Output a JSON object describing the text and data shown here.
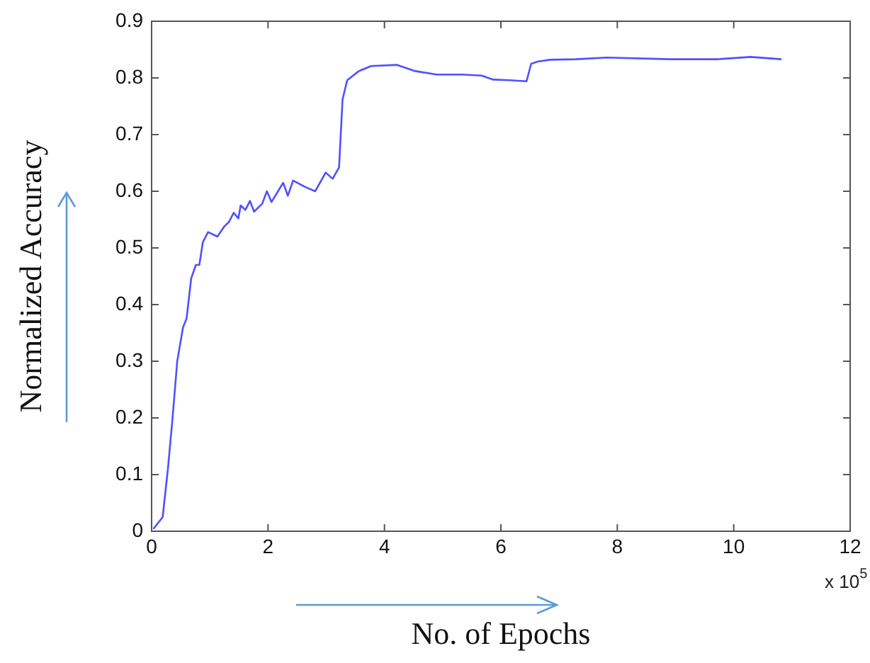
{
  "chart_data": {
    "type": "line",
    "xlabel": "No. of Epochs",
    "ylabel": "Normalized Accuracy",
    "annotations": [
      "x 10$^{5}$"
    ],
    "xlim": [
      0,
      12
    ],
    "xticks": [
      0,
      2,
      4,
      6,
      8,
      10,
      12
    ],
    "ylim": [
      0,
      0.9
    ],
    "yticks": [
      0,
      0.1,
      0.2,
      0.3,
      0.4,
      0.5,
      0.6,
      0.7,
      0.8,
      0.9
    ],
    "grid": false,
    "legend": false,
    "marker": "none",
    "line_style": "solid",
    "series": [
      {
        "color": "#5050ff",
        "x": [
          0.03,
          0.19,
          0.28,
          0.36,
          0.44,
          0.54,
          0.6,
          0.68,
          0.76,
          0.82,
          0.88,
          0.97,
          1.13,
          1.25,
          1.33,
          1.41,
          1.49,
          1.53,
          1.61,
          1.69,
          1.76,
          1.9,
          1.98,
          2.06,
          2.26,
          2.34,
          2.43,
          2.63,
          2.81,
          2.99,
          3.11,
          3.22,
          3.28,
          3.36,
          3.56,
          3.77,
          4.21,
          4.53,
          4.9,
          5.34,
          5.67,
          5.87,
          6.15,
          6.44,
          6.52,
          6.64,
          6.84,
          7.29,
          7.82,
          8.91,
          9.72,
          10.29,
          10.82
        ],
        "values": [
          0.004,
          0.025,
          0.11,
          0.2,
          0.3,
          0.36,
          0.375,
          0.446,
          0.47,
          0.47,
          0.51,
          0.528,
          0.52,
          0.538,
          0.546,
          0.562,
          0.552,
          0.575,
          0.567,
          0.583,
          0.564,
          0.578,
          0.6,
          0.581,
          0.615,
          0.592,
          0.619,
          0.608,
          0.6,
          0.633,
          0.622,
          0.642,
          0.762,
          0.796,
          0.812,
          0.821,
          0.823,
          0.812,
          0.806,
          0.806,
          0.804,
          0.797,
          0.796,
          0.794,
          0.825,
          0.829,
          0.832,
          0.833,
          0.836,
          0.833,
          0.833,
          0.837,
          0.833
        ]
      }
    ]
  }
}
